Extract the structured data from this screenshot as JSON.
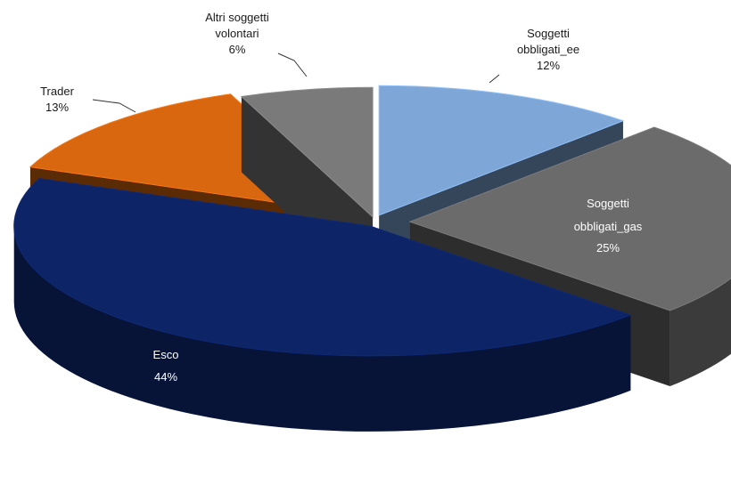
{
  "chart_data": {
    "type": "pie",
    "style": "3d-exploded",
    "title": "",
    "legend": "none",
    "slices": [
      {
        "label": "Soggetti obbligati_ee",
        "value": 12,
        "display": "12%",
        "color": "#7ea7d8"
      },
      {
        "label": "Soggetti obbligati_gas",
        "value": 25,
        "display": "25%",
        "color": "#6b6b6b"
      },
      {
        "label": "Esco",
        "value": 44,
        "display": "44%",
        "color": "#0d2466"
      },
      {
        "label": "Trader",
        "value": 13,
        "display": "13%",
        "color": "#d9670f"
      },
      {
        "label": "Altri soggetti volontari",
        "value": 6,
        "display": "6%",
        "color": "#7a7a7a"
      }
    ],
    "labels": {
      "ee": [
        "Soggetti",
        "obbligati_ee",
        "12%"
      ],
      "gas": [
        "Soggetti",
        "obbligati_gas",
        "25%"
      ],
      "esco": [
        "Esco",
        "44%"
      ],
      "trader": [
        "Trader",
        "13%"
      ],
      "altri": [
        "Altri soggetti",
        "volontari",
        "6%"
      ]
    }
  }
}
